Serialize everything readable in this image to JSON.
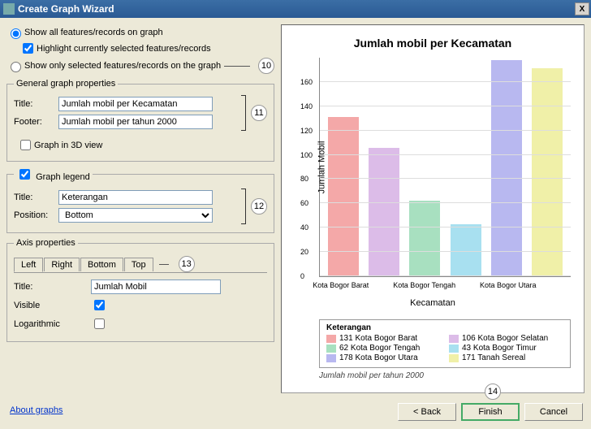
{
  "window": {
    "title": "Create Graph Wizard",
    "close": "X"
  },
  "options": {
    "show_all": "Show all features/records on graph",
    "highlight": "Highlight currently selected features/records",
    "show_selected": "Show only selected features/records on the graph"
  },
  "general": {
    "legend": "General graph properties",
    "title_lbl": "Title:",
    "title_val": "Jumlah mobil per Kecamatan",
    "footer_lbl": "Footer:",
    "footer_val": "Jumlah mobil per tahun 2000",
    "g3d": "Graph in 3D view"
  },
  "glegend": {
    "check": "Graph legend",
    "title_lbl": "Title:",
    "title_val": "Keterangan",
    "pos_lbl": "Position:",
    "pos_val": "Bottom"
  },
  "axis": {
    "header": "Axis properties",
    "tabs": {
      "left": "Left",
      "right": "Right",
      "bottom": "Bottom",
      "top": "Top"
    },
    "title_lbl": "Title:",
    "title_val": "Jumlah Mobil",
    "visible_lbl": "Visible",
    "log_lbl": "Logarithmic"
  },
  "callouts": {
    "c10": "10",
    "c11": "11",
    "c12": "12",
    "c13": "13",
    "c14": "14"
  },
  "buttons": {
    "back": "< Back",
    "finish": "Finish",
    "cancel": "Cancel",
    "about": "About graphs"
  },
  "chart": {
    "title": "Jumlah mobil per Kecamatan",
    "ylabel": "Jumlah Mobil",
    "xlabel": "Kecamatan",
    "footer": "Jumlah mobil per tahun 2000",
    "ymax": 180,
    "ytick_step": 20,
    "yticks": [
      "0",
      "20",
      "40",
      "60",
      "80",
      "100",
      "120",
      "140",
      "160"
    ],
    "bars": [
      {
        "label": "Kota Bogor Barat",
        "value": 131,
        "color": "#f4a8a8"
      },
      {
        "label": "Kota Bogor Selatan",
        "value": 106,
        "color": "#dcbce8"
      },
      {
        "label": "Kota Bogor Tengah",
        "value": 62,
        "color": "#a8e0c0"
      },
      {
        "label": "Kota Bogor Timur",
        "value": 43,
        "color": "#a8e0f0"
      },
      {
        "label": "Kota Bogor Utara",
        "value": 178,
        "color": "#b8b8f0"
      },
      {
        "label": "Tanah Sereal",
        "value": 171,
        "color": "#f0f0a8"
      }
    ],
    "xtick_labels": [
      "Kota Bogor Barat",
      "Kota Bogor Tengah",
      "Kota Bogor Utara"
    ],
    "legend_title": "Keterangan",
    "legend": [
      {
        "color": "#f4a8a8",
        "text": "131 Kota Bogor Barat"
      },
      {
        "color": "#dcbce8",
        "text": "106 Kota Bogor Selatan"
      },
      {
        "color": "#a8e0c0",
        "text": "62 Kota Bogor Tengah"
      },
      {
        "color": "#a8e0f0",
        "text": "43 Kota Bogor Timur"
      },
      {
        "color": "#b8b8f0",
        "text": "178 Kota Bogor Utara"
      },
      {
        "color": "#f0f0a8",
        "text": "171 Tanah Sereal"
      }
    ]
  }
}
